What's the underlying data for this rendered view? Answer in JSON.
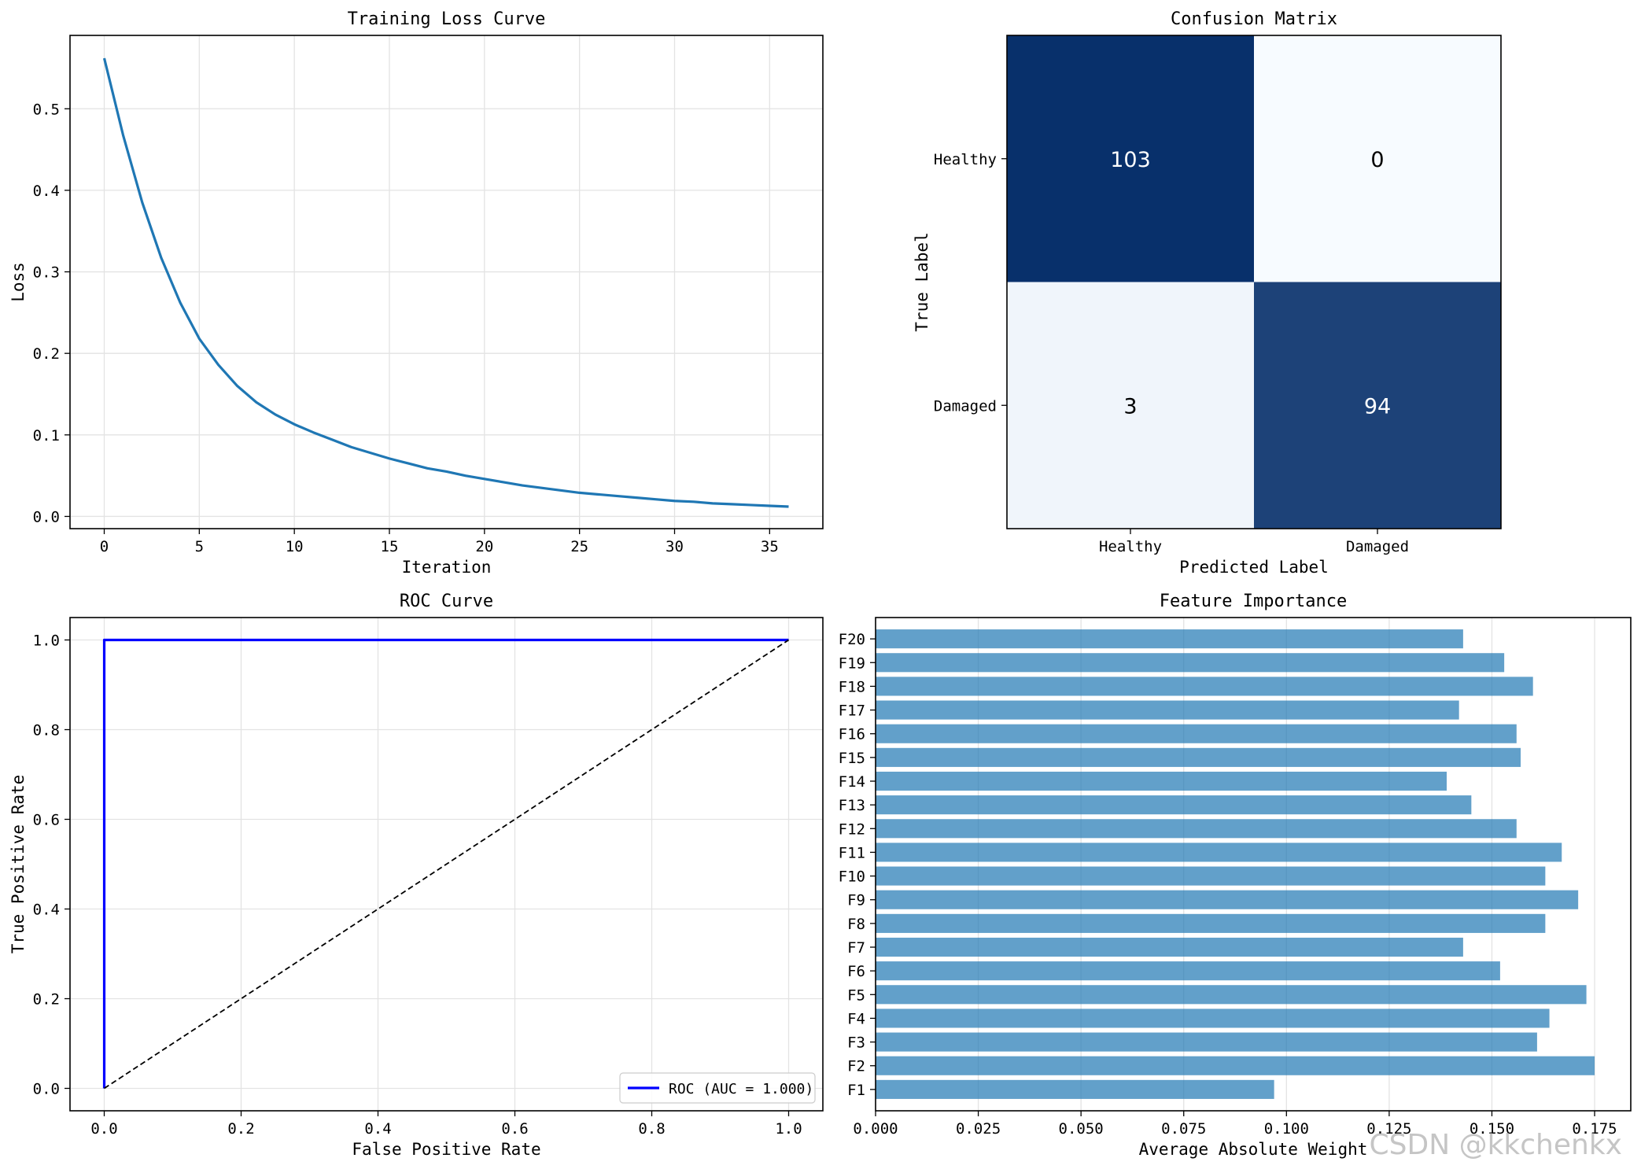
{
  "watermark": "CSDN @kkchenkx",
  "chart_data": [
    {
      "type": "line",
      "title": "Training Loss Curve",
      "xlabel": "Iteration",
      "ylabel": "Loss",
      "xlim": [
        -1.8,
        37.8
      ],
      "ylim": [
        -0.015,
        0.59
      ],
      "xticks": [
        0,
        5,
        10,
        15,
        20,
        25,
        30,
        35
      ],
      "yticks": [
        0.0,
        0.1,
        0.2,
        0.3,
        0.4,
        0.5
      ],
      "tick_format": 1,
      "grid": true,
      "series": [
        {
          "color": "#1f77b4",
          "x": [
            0,
            1,
            2,
            3,
            4,
            5,
            6,
            7,
            8,
            9,
            10,
            11,
            12,
            13,
            14,
            15,
            16,
            17,
            18,
            19,
            20,
            21,
            22,
            23,
            24,
            25,
            26,
            27,
            28,
            29,
            30,
            31,
            32,
            33,
            34,
            35,
            36
          ],
          "y": [
            0.562,
            0.467,
            0.385,
            0.317,
            0.262,
            0.218,
            0.186,
            0.16,
            0.14,
            0.125,
            0.113,
            0.103,
            0.094,
            0.085,
            0.078,
            0.071,
            0.065,
            0.059,
            0.055,
            0.05,
            0.046,
            0.042,
            0.038,
            0.035,
            0.032,
            0.029,
            0.027,
            0.025,
            0.023,
            0.021,
            0.019,
            0.018,
            0.016,
            0.015,
            0.014,
            0.013,
            0.012
          ]
        }
      ]
    },
    {
      "type": "heatmap",
      "title": "Confusion Matrix",
      "xlabel": "Predicted Label",
      "ylabel": "True Label",
      "x_categories": [
        "Healthy",
        "Damaged"
      ],
      "y_categories": [
        "Healthy",
        "Damaged"
      ],
      "values": [
        [
          103,
          0
        ],
        [
          3,
          94
        ]
      ],
      "colormap": "Blues"
    },
    {
      "type": "line",
      "title": "ROC Curve",
      "xlabel": "False Positive Rate",
      "ylabel": "True Positive Rate",
      "xlim": [
        -0.05,
        1.05
      ],
      "ylim": [
        -0.05,
        1.05
      ],
      "xticks": [
        0.0,
        0.2,
        0.4,
        0.6,
        0.8,
        1.0
      ],
      "yticks": [
        0.0,
        0.2,
        0.4,
        0.6,
        0.8,
        1.0
      ],
      "tick_format": 1,
      "grid": true,
      "legend": "lower right",
      "series": [
        {
          "name": "ROC (AUC = 1.000)",
          "color": "#0000ff",
          "x": [
            0,
            0,
            1
          ],
          "y": [
            0,
            1,
            1
          ]
        },
        {
          "color": "#000000",
          "dashed": true,
          "x": [
            0,
            1
          ],
          "y": [
            0,
            1
          ]
        }
      ]
    },
    {
      "type": "bar",
      "orientation": "horizontal",
      "title": "Feature Importance",
      "xlabel": "Average Absolute Weight",
      "ylabel": "",
      "categories": [
        "F1",
        "F2",
        "F3",
        "F4",
        "F5",
        "F6",
        "F7",
        "F8",
        "F9",
        "F10",
        "F11",
        "F12",
        "F13",
        "F14",
        "F15",
        "F16",
        "F17",
        "F18",
        "F19",
        "F20"
      ],
      "values": [
        0.097,
        0.175,
        0.161,
        0.164,
        0.173,
        0.152,
        0.143,
        0.163,
        0.171,
        0.163,
        0.167,
        0.156,
        0.145,
        0.139,
        0.157,
        0.156,
        0.142,
        0.16,
        0.153,
        0.143
      ],
      "xlim": [
        0.0,
        0.1838
      ],
      "xticks": [
        0.0,
        0.025,
        0.05,
        0.075,
        0.1,
        0.125,
        0.15,
        0.175
      ],
      "tick_format": 3,
      "color": "#1f77b4",
      "alpha": 0.7,
      "grid": true
    }
  ]
}
